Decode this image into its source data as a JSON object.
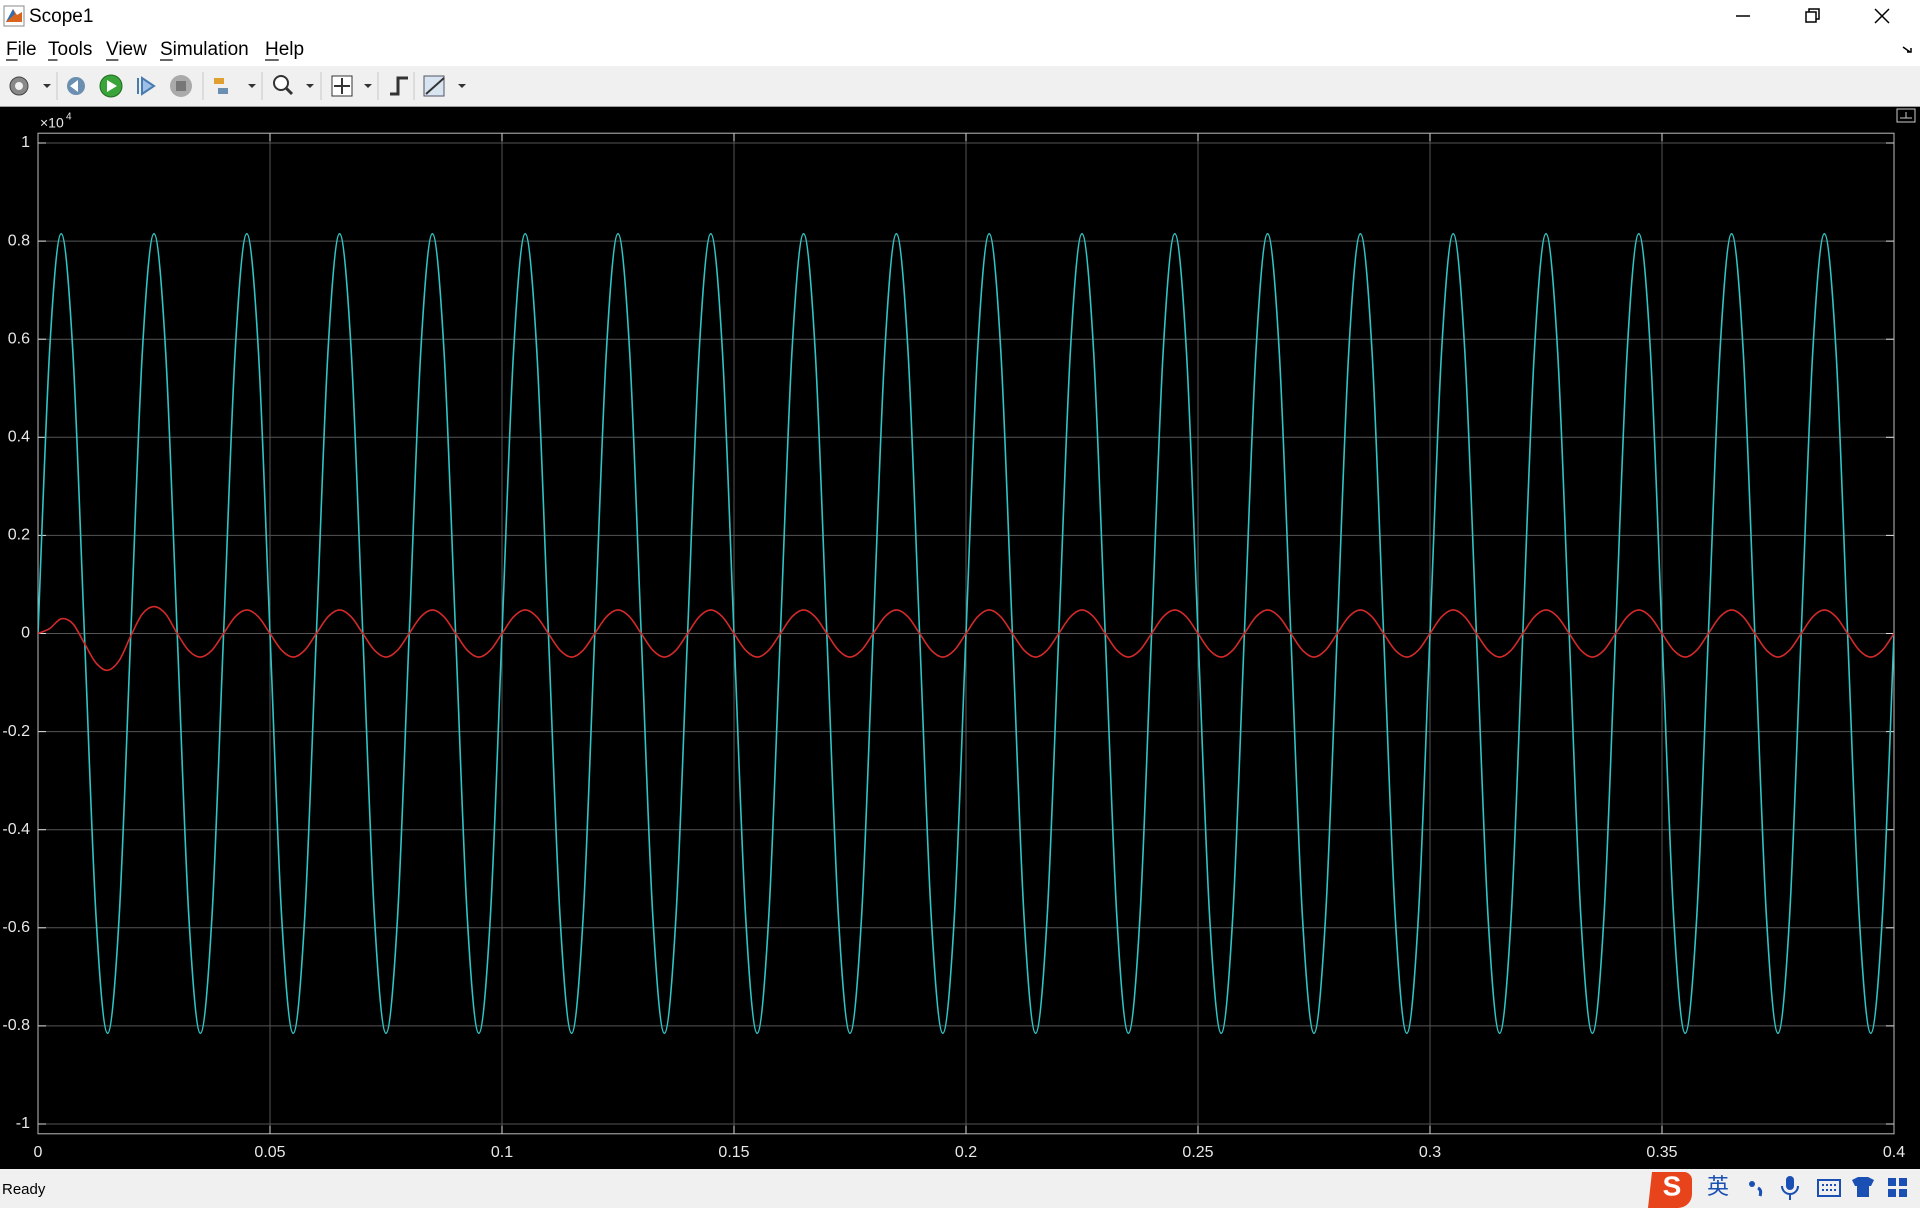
{
  "window": {
    "title": "Scope1"
  },
  "menu": [
    "File",
    "Tools",
    "View",
    "Simulation",
    "Help"
  ],
  "status": "Ready",
  "ime": "英",
  "chart_data": {
    "type": "line",
    "y_exponent_base": "×10",
    "y_exponent": "4",
    "x": [
      0,
      0.0025,
      0.005,
      0.0075,
      0.01,
      0.0125,
      0.015,
      0.0175,
      0.02,
      0.0225,
      0.025,
      0.0275,
      0.03,
      0.0325,
      0.035,
      0.0375,
      0.04,
      0.0425,
      0.045,
      0.0475,
      0.05,
      0.0525,
      0.055,
      0.0575,
      0.06,
      0.0625,
      0.065,
      0.0675,
      0.07,
      0.0725,
      0.075,
      0.0775,
      0.08,
      0.0825,
      0.085,
      0.0875,
      0.09,
      0.0925,
      0.095,
      0.0975,
      0.1,
      0.1025,
      0.105,
      0.1075,
      0.11,
      0.1125,
      0.115,
      0.1175,
      0.12,
      0.1225,
      0.125,
      0.1275,
      0.13,
      0.1325,
      0.135,
      0.1375,
      0.14,
      0.1425,
      0.145,
      0.1475,
      0.15,
      0.1525,
      0.155,
      0.1575,
      0.16,
      0.1625,
      0.165,
      0.1675,
      0.17,
      0.1725,
      0.175,
      0.1775,
      0.18,
      0.1825,
      0.185,
      0.1875,
      0.19,
      0.1925,
      0.195,
      0.1975,
      0.2,
      0.2025,
      0.205,
      0.2075,
      0.21,
      0.2125,
      0.215,
      0.2175,
      0.22,
      0.2225,
      0.225,
      0.2275,
      0.23,
      0.2325,
      0.235,
      0.2375,
      0.24,
      0.2425,
      0.245,
      0.2475,
      0.25,
      0.2525,
      0.255,
      0.2575,
      0.26,
      0.2625,
      0.265,
      0.2675,
      0.27,
      0.2725,
      0.275,
      0.2775,
      0.28,
      0.2825,
      0.285,
      0.2875,
      0.29,
      0.2925,
      0.295,
      0.2975,
      0.3,
      0.3025,
      0.305,
      0.3075,
      0.31,
      0.3125,
      0.315,
      0.3175,
      0.32,
      0.3225,
      0.325,
      0.3275,
      0.33,
      0.3325,
      0.335,
      0.3375,
      0.34,
      0.3425,
      0.345,
      0.3475,
      0.35,
      0.3525,
      0.355,
      0.3575,
      0.36,
      0.3625,
      0.365,
      0.3675,
      0.37,
      0.3725,
      0.375,
      0.3775,
      0.38,
      0.3825,
      0.385,
      0.3875,
      0.39,
      0.3925,
      0.395,
      0.3975,
      0.4
    ],
    "series": [
      {
        "color": "#30c4c4",
        "values": [
          0,
          0.576,
          0.815,
          0.576,
          0,
          -0.576,
          -0.815,
          -0.576,
          0,
          0.576,
          0.815,
          0.576,
          0,
          -0.576,
          -0.815,
          -0.576,
          0,
          0.576,
          0.815,
          0.576,
          0,
          -0.576,
          -0.815,
          -0.576,
          0,
          0.576,
          0.815,
          0.576,
          0,
          -0.576,
          -0.815,
          -0.576,
          0,
          0.576,
          0.815,
          0.576,
          0,
          -0.576,
          -0.815,
          -0.576,
          0,
          0.576,
          0.815,
          0.576,
          0,
          -0.576,
          -0.815,
          -0.576,
          0,
          0.576,
          0.815,
          0.576,
          0,
          -0.576,
          -0.815,
          -0.576,
          0,
          0.576,
          0.815,
          0.576,
          0,
          -0.576,
          -0.815,
          -0.576,
          0,
          0.576,
          0.815,
          0.576,
          0,
          -0.576,
          -0.815,
          -0.576,
          0,
          0.576,
          0.815,
          0.576,
          0,
          -0.576,
          -0.815,
          -0.576,
          0,
          0.576,
          0.815,
          0.576,
          0,
          -0.576,
          -0.815,
          -0.576,
          0,
          0.576,
          0.815,
          0.576,
          0,
          -0.576,
          -0.815,
          -0.576,
          0,
          0.576,
          0.815,
          0.576,
          0,
          -0.576,
          -0.815,
          -0.576,
          0,
          0.576,
          0.815,
          0.576,
          0,
          -0.576,
          -0.815,
          -0.576,
          0,
          0.576,
          0.815,
          0.576,
          0,
          -0.576,
          -0.815,
          -0.576,
          0,
          0.576,
          0.815,
          0.576,
          0,
          -0.576,
          -0.815,
          -0.576,
          0,
          0.576,
          0.815,
          0.576,
          0,
          -0.576,
          -0.815,
          -0.576,
          0,
          0.576,
          0.815,
          0.576,
          0,
          -0.576,
          -0.815,
          -0.576,
          0,
          0.576,
          0.815,
          0.576,
          0,
          -0.576,
          -0.815,
          -0.576,
          0,
          0.576,
          0.815,
          0.576,
          0,
          -0.576,
          -0.815,
          -0.576,
          0
        ]
      },
      {
        "color": "#d22a2a",
        "values": [
          0,
          0.01,
          0.03,
          0.02,
          -0.02,
          -0.06,
          -0.075,
          -0.055,
          -0.005,
          0.04,
          0.055,
          0.04,
          0,
          -0.035,
          -0.048,
          -0.034,
          0,
          0.034,
          0.048,
          0.034,
          0,
          -0.034,
          -0.048,
          -0.034,
          0,
          0.034,
          0.048,
          0.034,
          0,
          -0.034,
          -0.048,
          -0.034,
          0,
          0.034,
          0.048,
          0.034,
          0,
          -0.034,
          -0.048,
          -0.034,
          0,
          0.034,
          0.048,
          0.034,
          0,
          -0.034,
          -0.048,
          -0.034,
          0,
          0.034,
          0.048,
          0.034,
          0,
          -0.034,
          -0.048,
          -0.034,
          0,
          0.034,
          0.048,
          0.034,
          0,
          -0.034,
          -0.048,
          -0.034,
          0,
          0.034,
          0.048,
          0.034,
          0,
          -0.034,
          -0.048,
          -0.034,
          0,
          0.034,
          0.048,
          0.034,
          0,
          -0.034,
          -0.048,
          -0.034,
          0,
          0.034,
          0.048,
          0.034,
          0,
          -0.034,
          -0.048,
          -0.034,
          0,
          0.034,
          0.048,
          0.034,
          0,
          -0.034,
          -0.048,
          -0.034,
          0,
          0.034,
          0.048,
          0.034,
          0,
          -0.034,
          -0.048,
          -0.034,
          0,
          0.034,
          0.048,
          0.034,
          0,
          -0.034,
          -0.048,
          -0.034,
          0,
          0.034,
          0.048,
          0.034,
          0,
          -0.034,
          -0.048,
          -0.034,
          0,
          0.034,
          0.048,
          0.034,
          0,
          -0.034,
          -0.048,
          -0.034,
          0,
          0.034,
          0.048,
          0.034,
          0,
          -0.034,
          -0.048,
          -0.034,
          0,
          0.034,
          0.048,
          0.034,
          0,
          -0.034,
          -0.048,
          -0.034,
          0,
          0.034,
          0.048,
          0.034,
          0,
          -0.034,
          -0.048,
          -0.034,
          0,
          0.034,
          0.048,
          0.034,
          0,
          -0.034,
          -0.048,
          -0.034,
          0
        ]
      }
    ],
    "xlim": [
      0,
      0.4
    ],
    "ylim": [
      -1.02,
      1.02
    ],
    "xticks": [
      0,
      0.05,
      0.1,
      0.15,
      0.2,
      0.25,
      0.3,
      0.35,
      0.4
    ],
    "yticks": [
      -1,
      -0.8,
      -0.6,
      -0.4,
      -0.2,
      0,
      0.2,
      0.4,
      0.6,
      0.8,
      1
    ],
    "grid": true,
    "background": "#000000"
  }
}
